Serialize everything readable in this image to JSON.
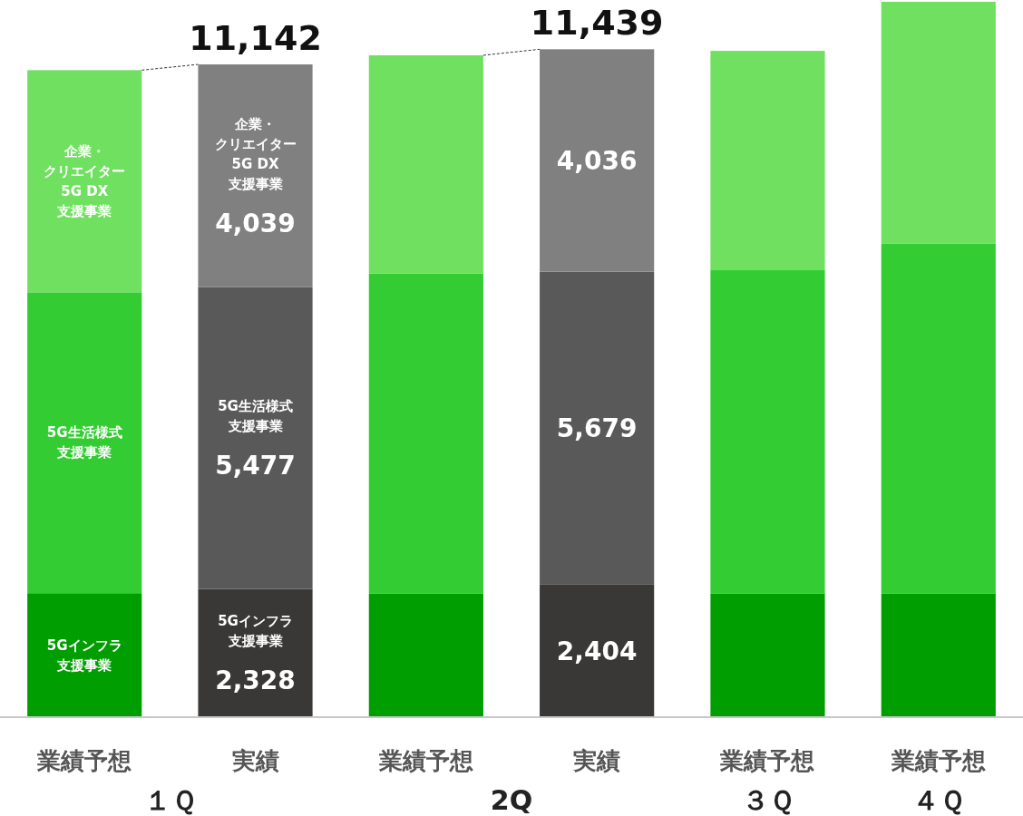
{
  "chart_data": {
    "type": "bar",
    "stacked": true,
    "categories": [
      "業績予想",
      "実績",
      "業績予想",
      "実績",
      "業績予想",
      "業績予想"
    ],
    "series": [
      {
        "name": "5Gインフラ支援事業",
        "colors": [
          "#009e00",
          "#3a3836",
          "#009e00",
          "#3a3836",
          "#009e00",
          "#009e00"
        ],
        "values": [
          2250,
          2328,
          2240,
          2404,
          2240,
          2240
        ],
        "value_labels": [
          null,
          "2,328",
          null,
          "2,404",
          null,
          null
        ]
      },
      {
        "name": "5G生活様式支援事業",
        "colors": [
          "#33cc33",
          "#595959",
          "#33cc33",
          "#595959",
          "#33cc33",
          "#33cc33"
        ],
        "values": [
          5460,
          5477,
          5810,
          5679,
          5870,
          6350
        ],
        "value_labels": [
          null,
          "5,477",
          null,
          "5,679",
          null,
          null
        ]
      },
      {
        "name": "企業・クリエイター5G DX支援事業",
        "colors": [
          "#70e060",
          "#808080",
          "#70e060",
          "#808080",
          "#70e060",
          "#70e060"
        ],
        "values": [
          4030,
          4039,
          3960,
          4036,
          3980,
          4390
        ],
        "value_labels": [
          null,
          "4,039",
          null,
          "4,036",
          null,
          null
        ]
      }
    ],
    "annotations": [
      "11,142",
      "11,439",
      "１Ｑ",
      "2Q",
      "３Ｑ",
      "４Ｑ"
    ]
  }
}
